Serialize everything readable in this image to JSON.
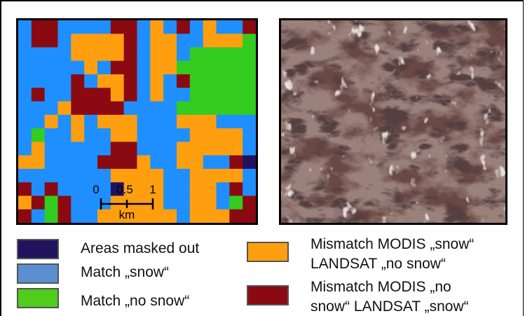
{
  "colors": {
    "masked": "#22125e",
    "snow": "#1f8fff",
    "no_snow": "#33cc1f",
    "mismatch_modis_snow": "#ff9f0f",
    "mismatch_modis_no_snow": "#8b0a12",
    "snow_swatch": "#5c8fd1",
    "no_snow_swatch": "#4fcc1c"
  },
  "scale_bar": {
    "ticks": [
      "0",
      "0.5",
      "1"
    ],
    "unit": "km"
  },
  "legend": {
    "masked": "Areas masked out",
    "match_snow": "Match „snow“",
    "match_no_snow": "Match „no snow“",
    "mismatch_snow_line1": "Mismatch MODIS „snow“",
    "mismatch_snow_line2": "LANDSAT „no snow“",
    "mismatch_no_snow_line1": "Mismatch MODIS „no",
    "mismatch_no_snow_line2": "snow“ LANDSAT „snow“"
  },
  "grid": {
    "cols": 18,
    "rows": 15,
    "legend_key": "M=masked, B=match snow, G=match no snow, O=mismatch MODIS snow, R=mismatch MODIS no snow",
    "cells": [
      "BRRBBBBRRBOBRBOBBR",
      "BRRBOOOORBOOBBOOOG",
      "BBBBOOOORBOOBGGGGG",
      "BBBBBOBRRBOOGGGGGG",
      "BBBBRBOORBOBRGGGGG",
      "BRBBRRRORBOBBGGGGG",
      "BBBORRRRBBBBGGGGGG",
      "BBOBOBOOOBBBOOOBBB",
      "BGBBOBBOOBBBBOOOOB",
      "BOBBBBBRRBBBOOOOOB",
      "OOBBBBRRROBBOOBBRM",
      "BBBBBBBOOOOBBOOOOB",
      "RBRBBBBMOOOBBOOBRB",
      "ORGRBBBOOOOBBOOBGR",
      "RBGRBBOOOOOOBOOORR"
    ]
  }
}
